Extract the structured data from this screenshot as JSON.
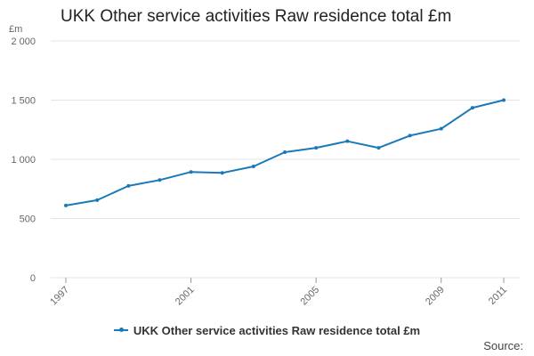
{
  "colors": {
    "series": "#1a7ab9",
    "grid": "#e4e4e4",
    "axis_text": "#666666"
  },
  "chart_data": {
    "type": "line",
    "title": "UKK Other service activities Raw residence total £m",
    "ylabel": "£m",
    "xlabel": "",
    "ylim": [
      0,
      2000
    ],
    "yticks": [
      0,
      500,
      1000,
      1500,
      2000
    ],
    "ytick_labels": [
      "0",
      "500",
      "1 000",
      "1 500",
      "2 000"
    ],
    "xlim": [
      1997,
      2011
    ],
    "xticks": [
      1997,
      2001,
      2005,
      2009,
      2011
    ],
    "xtick_labels": [
      "1997",
      "2001",
      "2005",
      "2009",
      "2011"
    ],
    "x": [
      1997,
      1998,
      1999,
      2000,
      2001,
      2002,
      2003,
      2004,
      2005,
      2006,
      2007,
      2008,
      2009,
      2010,
      2011
    ],
    "series": [
      {
        "name": "UKK Other service activities Raw residence total £m",
        "values": [
          610,
          655,
          775,
          825,
          893,
          885,
          940,
          1060,
          1097,
          1153,
          1097,
          1200,
          1258,
          1435,
          1500
        ]
      }
    ],
    "legend": "bottom-center",
    "grid": true
  },
  "source": {
    "label": "Source:"
  }
}
